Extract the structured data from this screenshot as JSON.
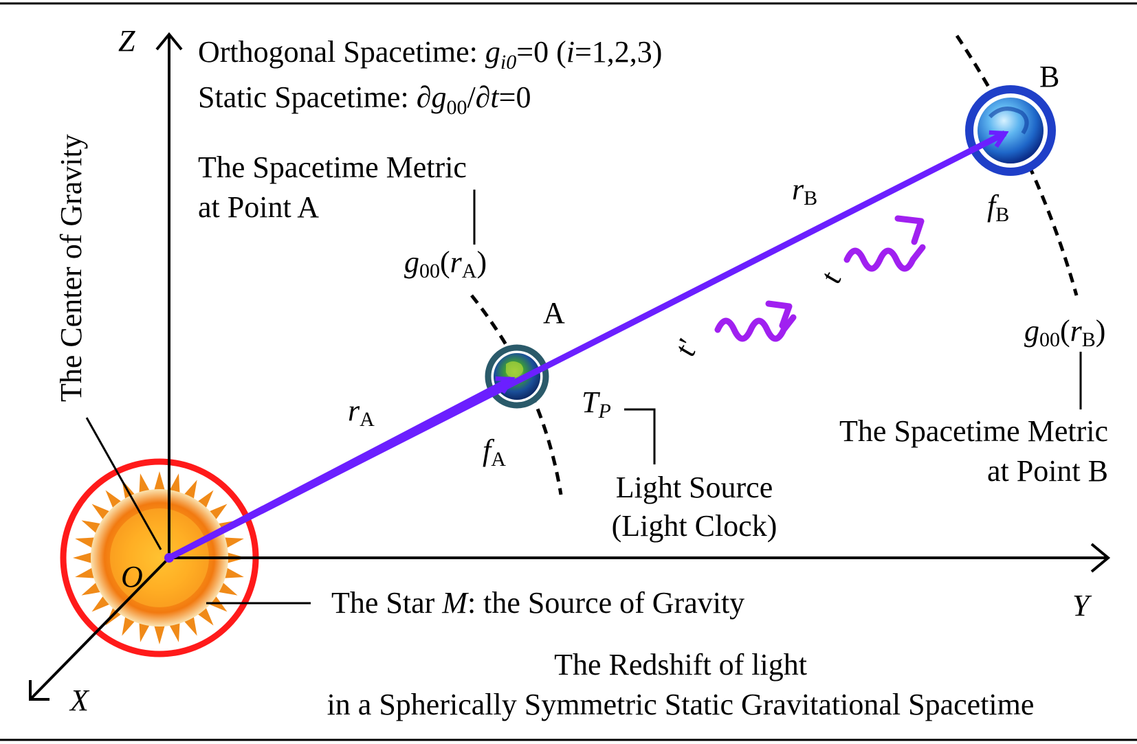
{
  "header": {
    "orthogonal_prefix": "Orthogonal Spacetime: ",
    "orthogonal_g": "g",
    "orthogonal_sub": "i0",
    "orthogonal_eq": "=0  (",
    "orthogonal_i": "i",
    "orthogonal_rest": "=1,2,3)",
    "static_prefix": "Static Spacetime: ",
    "static_d1": "∂g",
    "static_sub": "00",
    "static_slash": "/∂",
    "static_t": "t",
    "static_rest": "=0"
  },
  "axes": {
    "z": "Z",
    "y": "Y",
    "x": "X",
    "origin": "O"
  },
  "labels": {
    "center_of_gravity": "The Center of Gravity",
    "metric_a_line1": "The Spacetime Metric",
    "metric_a_line2": "at Point A",
    "metric_b_line1": "The Spacetime Metric",
    "metric_b_line2": "at Point B",
    "g00_base": "g",
    "g00_sub": "00",
    "g00_open": "(",
    "r_letter": "r",
    "sub_a": "A",
    "sub_b": "B",
    "g00_close": ")",
    "point_a": "A",
    "point_b": "B",
    "f_letter": "f",
    "t_prime": "t'",
    "t_plain": "t",
    "tp_base": "T",
    "tp_sub": "P",
    "light_source_line1": "Light Source",
    "light_source_line2": "(Light Clock)",
    "star_prefix": "The Star ",
    "star_m": "M",
    "star_rest": ": the Source of Gravity",
    "caption_line1": "The Redshift of light",
    "caption_line2": "in a Spherically Symmetric Static Gravitational Spacetime"
  },
  "colors": {
    "ray": "#6b1fff",
    "wave": "#a020f0",
    "star_ring": "#ff1a1a",
    "planet_a_ring": "#2a5a6a",
    "planet_b_ring": "#1f3fc8"
  }
}
